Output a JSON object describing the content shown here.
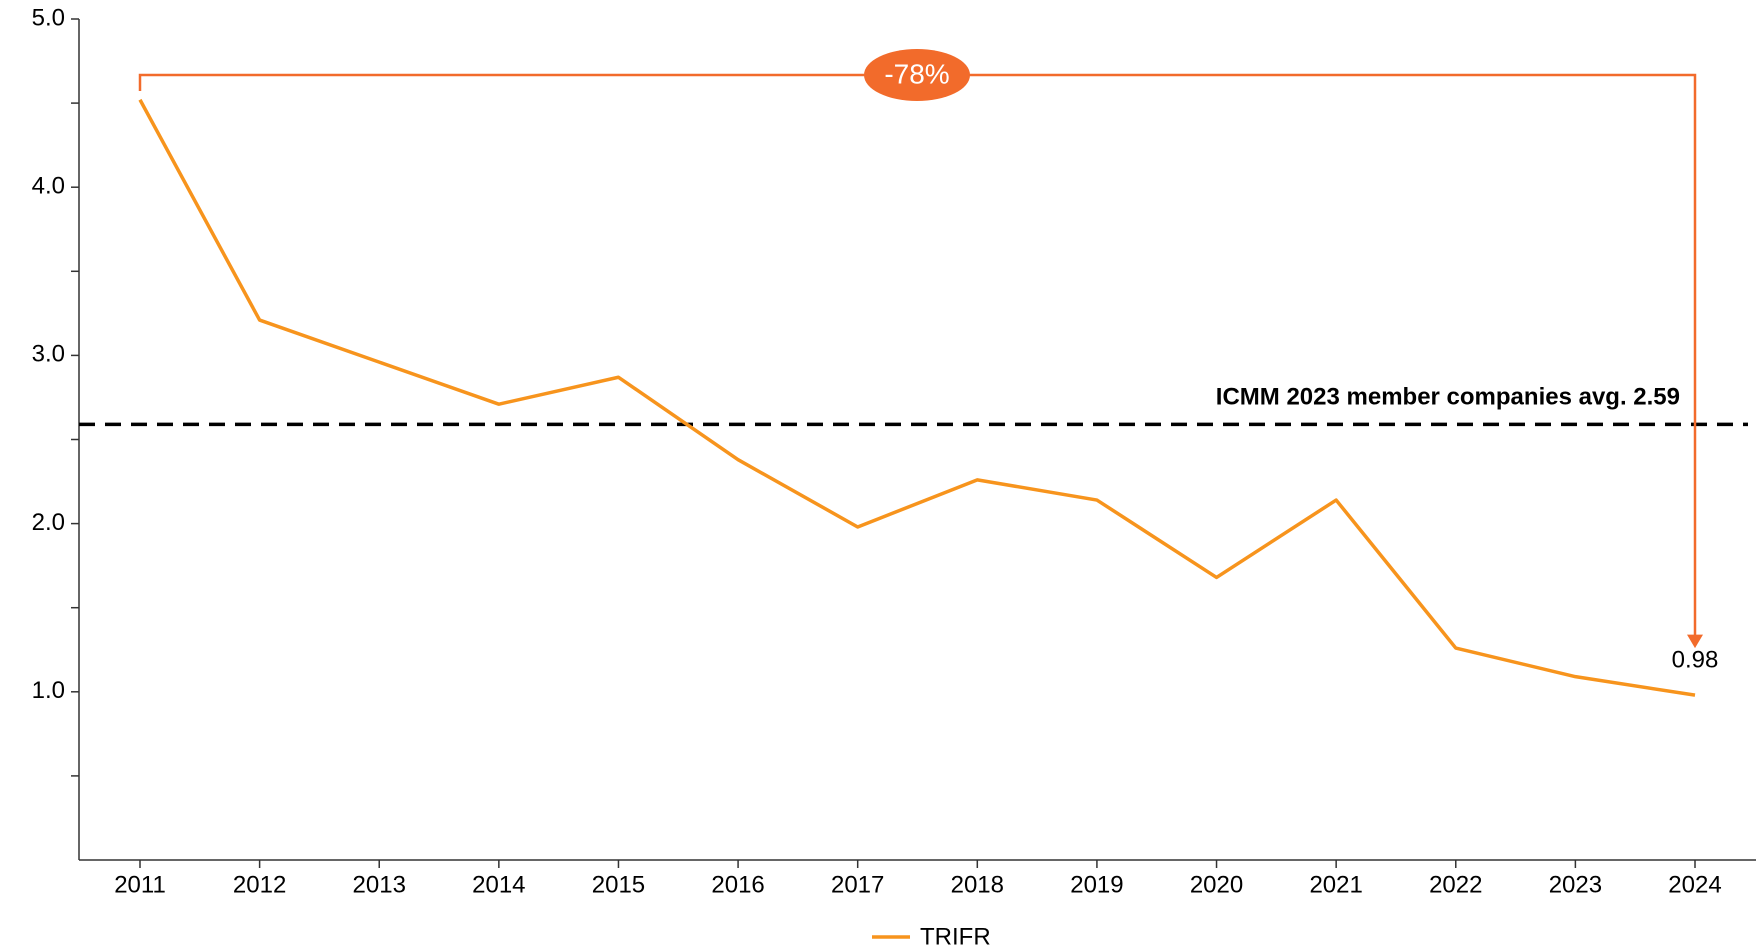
{
  "chart_data": {
    "type": "line",
    "categories": [
      "2011",
      "2012",
      "2013",
      "2014",
      "2015",
      "2016",
      "2017",
      "2018",
      "2019",
      "2020",
      "2021",
      "2022",
      "2023",
      "2024"
    ],
    "series": [
      {
        "name": "TRIFR",
        "color": "#f7941d",
        "values": [
          4.52,
          3.21,
          2.96,
          2.71,
          2.87,
          2.38,
          1.98,
          2.26,
          2.14,
          1.68,
          2.14,
          1.26,
          1.09,
          0.98
        ],
        "value_labels": [
          null,
          null,
          null,
          null,
          null,
          null,
          null,
          null,
          null,
          null,
          null,
          null,
          null,
          "0.98"
        ]
      }
    ],
    "ylim": [
      0,
      5
    ],
    "yticks": [
      {
        "value": 1,
        "label": "1.0"
      },
      {
        "value": 2,
        "label": "2.0"
      },
      {
        "value": 3,
        "label": "3.0"
      },
      {
        "value": 4,
        "label": "4.0"
      },
      {
        "value": 5,
        "label": "5.0"
      }
    ],
    "minor_yticks": [
      0.5,
      1.5,
      2.5,
      3.5,
      4.5
    ],
    "reference_line": {
      "value": 2.59,
      "label": "ICMM 2023 member companies avg. 2.59"
    },
    "annotation": {
      "text": "-78%",
      "color": "#f26b2b"
    },
    "legend": "bottom"
  }
}
